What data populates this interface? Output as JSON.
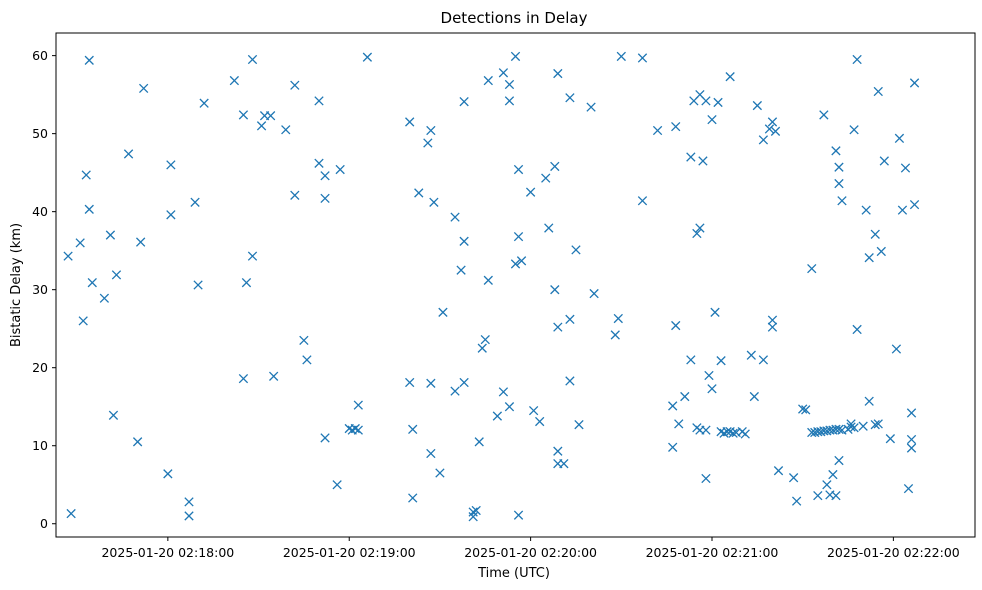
{
  "colors": {
    "series": "#1f77b4",
    "axis": "#000000",
    "background": "#ffffff"
  },
  "chart_data": {
    "type": "scatter",
    "title": "Detections in Delay",
    "xlabel": "Time (UTC)",
    "ylabel": "Bistatic Delay (km)",
    "marker": "x",
    "grid": false,
    "x_format": "datetime",
    "xlim": [
      "2025-01-20 02:17:23",
      "2025-01-20 02:22:27"
    ],
    "ylim": [
      -1.7,
      62.9
    ],
    "x_ticks": [
      "2025-01-20 02:18:00",
      "2025-01-20 02:19:00",
      "2025-01-20 02:20:00",
      "2025-01-20 02:21:00",
      "2025-01-20 02:22:00"
    ],
    "y_ticks": [
      0,
      10,
      20,
      30,
      40,
      50,
      60
    ],
    "points": [
      {
        "x": "2025-01-20 02:17:27",
        "y": 34.3
      },
      {
        "x": "2025-01-20 02:17:28",
        "y": 1.3
      },
      {
        "x": "2025-01-20 02:17:31",
        "y": 36.0
      },
      {
        "x": "2025-01-20 02:17:32",
        "y": 26.0
      },
      {
        "x": "2025-01-20 02:17:33",
        "y": 44.7
      },
      {
        "x": "2025-01-20 02:17:34",
        "y": 40.3
      },
      {
        "x": "2025-01-20 02:17:34",
        "y": 59.4
      },
      {
        "x": "2025-01-20 02:17:35",
        "y": 30.9
      },
      {
        "x": "2025-01-20 02:17:39",
        "y": 28.9
      },
      {
        "x": "2025-01-20 02:17:41",
        "y": 37.0
      },
      {
        "x": "2025-01-20 02:17:42",
        "y": 13.9
      },
      {
        "x": "2025-01-20 02:17:43",
        "y": 31.9
      },
      {
        "x": "2025-01-20 02:17:47",
        "y": 47.4
      },
      {
        "x": "2025-01-20 02:17:50",
        "y": 10.5
      },
      {
        "x": "2025-01-20 02:17:51",
        "y": 36.1
      },
      {
        "x": "2025-01-20 02:17:52",
        "y": 55.8
      },
      {
        "x": "2025-01-20 02:18:00",
        "y": 6.4
      },
      {
        "x": "2025-01-20 02:18:01",
        "y": 46.0
      },
      {
        "x": "2025-01-20 02:18:01",
        "y": 39.6
      },
      {
        "x": "2025-01-20 02:18:07",
        "y": 2.8
      },
      {
        "x": "2025-01-20 02:18:07",
        "y": 1.0
      },
      {
        "x": "2025-01-20 02:18:09",
        "y": 41.2
      },
      {
        "x": "2025-01-20 02:18:10",
        "y": 30.6
      },
      {
        "x": "2025-01-20 02:18:12",
        "y": 53.9
      },
      {
        "x": "2025-01-20 02:18:22",
        "y": 56.8
      },
      {
        "x": "2025-01-20 02:18:25",
        "y": 18.6
      },
      {
        "x": "2025-01-20 02:18:25",
        "y": 52.4
      },
      {
        "x": "2025-01-20 02:18:26",
        "y": 30.9
      },
      {
        "x": "2025-01-20 02:18:28",
        "y": 59.5
      },
      {
        "x": "2025-01-20 02:18:28",
        "y": 34.3
      },
      {
        "x": "2025-01-20 02:18:31",
        "y": 51.0
      },
      {
        "x": "2025-01-20 02:18:32",
        "y": 52.3
      },
      {
        "x": "2025-01-20 02:18:34",
        "y": 52.3
      },
      {
        "x": "2025-01-20 02:18:35",
        "y": 18.9
      },
      {
        "x": "2025-01-20 02:18:39",
        "y": 50.5
      },
      {
        "x": "2025-01-20 02:18:42",
        "y": 42.1
      },
      {
        "x": "2025-01-20 02:18:42",
        "y": 56.2
      },
      {
        "x": "2025-01-20 02:18:45",
        "y": 23.5
      },
      {
        "x": "2025-01-20 02:18:46",
        "y": 21.0
      },
      {
        "x": "2025-01-20 02:18:50",
        "y": 54.2
      },
      {
        "x": "2025-01-20 02:18:50",
        "y": 46.2
      },
      {
        "x": "2025-01-20 02:18:52",
        "y": 44.6
      },
      {
        "x": "2025-01-20 02:18:52",
        "y": 41.7
      },
      {
        "x": "2025-01-20 02:18:52",
        "y": 11.0
      },
      {
        "x": "2025-01-20 02:18:56",
        "y": 5.0
      },
      {
        "x": "2025-01-20 02:18:57",
        "y": 45.4
      },
      {
        "x": "2025-01-20 02:19:00",
        "y": 12.2
      },
      {
        "x": "2025-01-20 02:19:01",
        "y": 12.0
      },
      {
        "x": "2025-01-20 02:19:02",
        "y": 12.2
      },
      {
        "x": "2025-01-20 02:19:03",
        "y": 15.2
      },
      {
        "x": "2025-01-20 02:19:03",
        "y": 12.0
      },
      {
        "x": "2025-01-20 02:19:06",
        "y": 59.8
      },
      {
        "x": "2025-01-20 02:19:20",
        "y": 51.5
      },
      {
        "x": "2025-01-20 02:19:20",
        "y": 18.1
      },
      {
        "x": "2025-01-20 02:19:21",
        "y": 3.3
      },
      {
        "x": "2025-01-20 02:19:21",
        "y": 12.1
      },
      {
        "x": "2025-01-20 02:19:23",
        "y": 42.4
      },
      {
        "x": "2025-01-20 02:19:26",
        "y": 48.8
      },
      {
        "x": "2025-01-20 02:19:27",
        "y": 18.0
      },
      {
        "x": "2025-01-20 02:19:27",
        "y": 50.4
      },
      {
        "x": "2025-01-20 02:19:27",
        "y": 9.0
      },
      {
        "x": "2025-01-20 02:19:28",
        "y": 41.2
      },
      {
        "x": "2025-01-20 02:19:30",
        "y": 6.5
      },
      {
        "x": "2025-01-20 02:19:31",
        "y": 27.1
      },
      {
        "x": "2025-01-20 02:19:35",
        "y": 17.0
      },
      {
        "x": "2025-01-20 02:19:35",
        "y": 39.3
      },
      {
        "x": "2025-01-20 02:19:37",
        "y": 32.5
      },
      {
        "x": "2025-01-20 02:19:38",
        "y": 36.2
      },
      {
        "x": "2025-01-20 02:19:38",
        "y": 18.1
      },
      {
        "x": "2025-01-20 02:19:38",
        "y": 54.1
      },
      {
        "x": "2025-01-20 02:19:41",
        "y": 1.5
      },
      {
        "x": "2025-01-20 02:19:41",
        "y": 0.9
      },
      {
        "x": "2025-01-20 02:19:42",
        "y": 1.7
      },
      {
        "x": "2025-01-20 02:19:43",
        "y": 10.5
      },
      {
        "x": "2025-01-20 02:19:44",
        "y": 22.5
      },
      {
        "x": "2025-01-20 02:19:45",
        "y": 23.6
      },
      {
        "x": "2025-01-20 02:19:46",
        "y": 31.2
      },
      {
        "x": "2025-01-20 02:19:46",
        "y": 56.8
      },
      {
        "x": "2025-01-20 02:19:49",
        "y": 13.8
      },
      {
        "x": "2025-01-20 02:19:51",
        "y": 57.8
      },
      {
        "x": "2025-01-20 02:19:51",
        "y": 16.9
      },
      {
        "x": "2025-01-20 02:19:53",
        "y": 54.2
      },
      {
        "x": "2025-01-20 02:19:53",
        "y": 56.3
      },
      {
        "x": "2025-01-20 02:19:53",
        "y": 15.0
      },
      {
        "x": "2025-01-20 02:19:55",
        "y": 59.9
      },
      {
        "x": "2025-01-20 02:19:55",
        "y": 33.3
      },
      {
        "x": "2025-01-20 02:19:56",
        "y": 45.4
      },
      {
        "x": "2025-01-20 02:19:56",
        "y": 36.8
      },
      {
        "x": "2025-01-20 02:19:56",
        "y": 1.1
      },
      {
        "x": "2025-01-20 02:19:57",
        "y": 33.7
      },
      {
        "x": "2025-01-20 02:20:00",
        "y": 42.5
      },
      {
        "x": "2025-01-20 02:20:01",
        "y": 14.5
      },
      {
        "x": "2025-01-20 02:20:03",
        "y": 13.1
      },
      {
        "x": "2025-01-20 02:20:05",
        "y": 44.3
      },
      {
        "x": "2025-01-20 02:20:06",
        "y": 37.9
      },
      {
        "x": "2025-01-20 02:20:08",
        "y": 45.8
      },
      {
        "x": "2025-01-20 02:20:08",
        "y": 30.0
      },
      {
        "x": "2025-01-20 02:20:09",
        "y": 57.7
      },
      {
        "x": "2025-01-20 02:20:09",
        "y": 25.2
      },
      {
        "x": "2025-01-20 02:20:09",
        "y": 9.3
      },
      {
        "x": "2025-01-20 02:20:09",
        "y": 7.7
      },
      {
        "x": "2025-01-20 02:20:11",
        "y": 7.7
      },
      {
        "x": "2025-01-20 02:20:13",
        "y": 54.6
      },
      {
        "x": "2025-01-20 02:20:13",
        "y": 26.2
      },
      {
        "x": "2025-01-20 02:20:13",
        "y": 18.3
      },
      {
        "x": "2025-01-20 02:20:15",
        "y": 35.1
      },
      {
        "x": "2025-01-20 02:20:16",
        "y": 12.7
      },
      {
        "x": "2025-01-20 02:20:20",
        "y": 53.4
      },
      {
        "x": "2025-01-20 02:20:21",
        "y": 29.5
      },
      {
        "x": "2025-01-20 02:20:28",
        "y": 24.2
      },
      {
        "x": "2025-01-20 02:20:29",
        "y": 26.3
      },
      {
        "x": "2025-01-20 02:20:30",
        "y": 59.9
      },
      {
        "x": "2025-01-20 02:20:37",
        "y": 41.4
      },
      {
        "x": "2025-01-20 02:20:37",
        "y": 59.7
      },
      {
        "x": "2025-01-20 02:20:42",
        "y": 50.4
      },
      {
        "x": "2025-01-20 02:20:47",
        "y": 15.1
      },
      {
        "x": "2025-01-20 02:20:47",
        "y": 9.8
      },
      {
        "x": "2025-01-20 02:20:48",
        "y": 25.4
      },
      {
        "x": "2025-01-20 02:20:48",
        "y": 50.9
      },
      {
        "x": "2025-01-20 02:20:49",
        "y": 12.8
      },
      {
        "x": "2025-01-20 02:20:51",
        "y": 16.3
      },
      {
        "x": "2025-01-20 02:20:53",
        "y": 21.0
      },
      {
        "x": "2025-01-20 02:20:53",
        "y": 47.0
      },
      {
        "x": "2025-01-20 02:20:54",
        "y": 54.2
      },
      {
        "x": "2025-01-20 02:20:55",
        "y": 12.3
      },
      {
        "x": "2025-01-20 02:20:55",
        "y": 37.2
      },
      {
        "x": "2025-01-20 02:20:56",
        "y": 55.0
      },
      {
        "x": "2025-01-20 02:20:56",
        "y": 12.0
      },
      {
        "x": "2025-01-20 02:20:56",
        "y": 37.9
      },
      {
        "x": "2025-01-20 02:20:57",
        "y": 46.5
      },
      {
        "x": "2025-01-20 02:20:58",
        "y": 5.8
      },
      {
        "x": "2025-01-20 02:20:58",
        "y": 54.2
      },
      {
        "x": "2025-01-20 02:20:58",
        "y": 12.0
      },
      {
        "x": "2025-01-20 02:20:59",
        "y": 19.0
      },
      {
        "x": "2025-01-20 02:21:00",
        "y": 17.3
      },
      {
        "x": "2025-01-20 02:21:00",
        "y": 51.8
      },
      {
        "x": "2025-01-20 02:21:01",
        "y": 27.1
      },
      {
        "x": "2025-01-20 02:21:02",
        "y": 54.0
      },
      {
        "x": "2025-01-20 02:21:03",
        "y": 20.9
      },
      {
        "x": "2025-01-20 02:21:03",
        "y": 11.8
      },
      {
        "x": "2025-01-20 02:21:04",
        "y": 11.6
      },
      {
        "x": "2025-01-20 02:21:05",
        "y": 11.8
      },
      {
        "x": "2025-01-20 02:21:06",
        "y": 11.8
      },
      {
        "x": "2025-01-20 02:21:06",
        "y": 57.3
      },
      {
        "x": "2025-01-20 02:21:07",
        "y": 11.6
      },
      {
        "x": "2025-01-20 02:21:08",
        "y": 11.7
      },
      {
        "x": "2025-01-20 02:21:10",
        "y": 11.8
      },
      {
        "x": "2025-01-20 02:21:11",
        "y": 11.5
      },
      {
        "x": "2025-01-20 02:21:13",
        "y": 21.6
      },
      {
        "x": "2025-01-20 02:21:14",
        "y": 16.3
      },
      {
        "x": "2025-01-20 02:21:15",
        "y": 53.6
      },
      {
        "x": "2025-01-20 02:21:17",
        "y": 49.2
      },
      {
        "x": "2025-01-20 02:21:17",
        "y": 21.0
      },
      {
        "x": "2025-01-20 02:21:19",
        "y": 50.6
      },
      {
        "x": "2025-01-20 02:21:20",
        "y": 51.5
      },
      {
        "x": "2025-01-20 02:21:20",
        "y": 26.1
      },
      {
        "x": "2025-01-20 02:21:20",
        "y": 25.2
      },
      {
        "x": "2025-01-20 02:21:21",
        "y": 50.3
      },
      {
        "x": "2025-01-20 02:21:22",
        "y": 6.8
      },
      {
        "x": "2025-01-20 02:21:27",
        "y": 5.9
      },
      {
        "x": "2025-01-20 02:21:28",
        "y": 2.9
      },
      {
        "x": "2025-01-20 02:21:30",
        "y": 14.7
      },
      {
        "x": "2025-01-20 02:21:31",
        "y": 14.6
      },
      {
        "x": "2025-01-20 02:21:33",
        "y": 32.7
      },
      {
        "x": "2025-01-20 02:21:33",
        "y": 11.7
      },
      {
        "x": "2025-01-20 02:21:34",
        "y": 11.7
      },
      {
        "x": "2025-01-20 02:21:35",
        "y": 11.8
      },
      {
        "x": "2025-01-20 02:21:35",
        "y": 3.6
      },
      {
        "x": "2025-01-20 02:21:36",
        "y": 11.8
      },
      {
        "x": "2025-01-20 02:21:37",
        "y": 11.9
      },
      {
        "x": "2025-01-20 02:21:37",
        "y": 52.4
      },
      {
        "x": "2025-01-20 02:21:38",
        "y": 5.0
      },
      {
        "x": "2025-01-20 02:21:38",
        "y": 11.9
      },
      {
        "x": "2025-01-20 02:21:39",
        "y": 3.7
      },
      {
        "x": "2025-01-20 02:21:39",
        "y": 12.0
      },
      {
        "x": "2025-01-20 02:21:40",
        "y": 12.0
      },
      {
        "x": "2025-01-20 02:21:40",
        "y": 6.3
      },
      {
        "x": "2025-01-20 02:21:41",
        "y": 3.6
      },
      {
        "x": "2025-01-20 02:21:41",
        "y": 12.1
      },
      {
        "x": "2025-01-20 02:21:41",
        "y": 47.8
      },
      {
        "x": "2025-01-20 02:21:42",
        "y": 12.1
      },
      {
        "x": "2025-01-20 02:21:42",
        "y": 43.6
      },
      {
        "x": "2025-01-20 02:21:42",
        "y": 45.7
      },
      {
        "x": "2025-01-20 02:21:42",
        "y": 8.1
      },
      {
        "x": "2025-01-20 02:21:43",
        "y": 12.0
      },
      {
        "x": "2025-01-20 02:21:43",
        "y": 41.4
      },
      {
        "x": "2025-01-20 02:21:45",
        "y": 12.1
      },
      {
        "x": "2025-01-20 02:21:46",
        "y": 12.4
      },
      {
        "x": "2025-01-20 02:21:46",
        "y": 12.8
      },
      {
        "x": "2025-01-20 02:21:47",
        "y": 50.5
      },
      {
        "x": "2025-01-20 02:21:47",
        "y": 12.3
      },
      {
        "x": "2025-01-20 02:21:48",
        "y": 24.9
      },
      {
        "x": "2025-01-20 02:21:48",
        "y": 59.5
      },
      {
        "x": "2025-01-20 02:21:50",
        "y": 12.5
      },
      {
        "x": "2025-01-20 02:21:51",
        "y": 40.2
      },
      {
        "x": "2025-01-20 02:21:52",
        "y": 15.7
      },
      {
        "x": "2025-01-20 02:21:52",
        "y": 34.1
      },
      {
        "x": "2025-01-20 02:21:54",
        "y": 12.7
      },
      {
        "x": "2025-01-20 02:21:54",
        "y": 37.1
      },
      {
        "x": "2025-01-20 02:21:55",
        "y": 12.8
      },
      {
        "x": "2025-01-20 02:21:55",
        "y": 55.4
      },
      {
        "x": "2025-01-20 02:21:56",
        "y": 34.9
      },
      {
        "x": "2025-01-20 02:21:57",
        "y": 46.5
      },
      {
        "x": "2025-01-20 02:21:59",
        "y": 10.9
      },
      {
        "x": "2025-01-20 02:22:01",
        "y": 22.4
      },
      {
        "x": "2025-01-20 02:22:02",
        "y": 49.4
      },
      {
        "x": "2025-01-20 02:22:03",
        "y": 40.2
      },
      {
        "x": "2025-01-20 02:22:04",
        "y": 45.6
      },
      {
        "x": "2025-01-20 02:22:05",
        "y": 4.5
      },
      {
        "x": "2025-01-20 02:22:06",
        "y": 10.8
      },
      {
        "x": "2025-01-20 02:22:06",
        "y": 14.2
      },
      {
        "x": "2025-01-20 02:22:06",
        "y": 9.7
      },
      {
        "x": "2025-01-20 02:22:07",
        "y": 40.9
      },
      {
        "x": "2025-01-20 02:22:07",
        "y": 56.5
      }
    ]
  }
}
